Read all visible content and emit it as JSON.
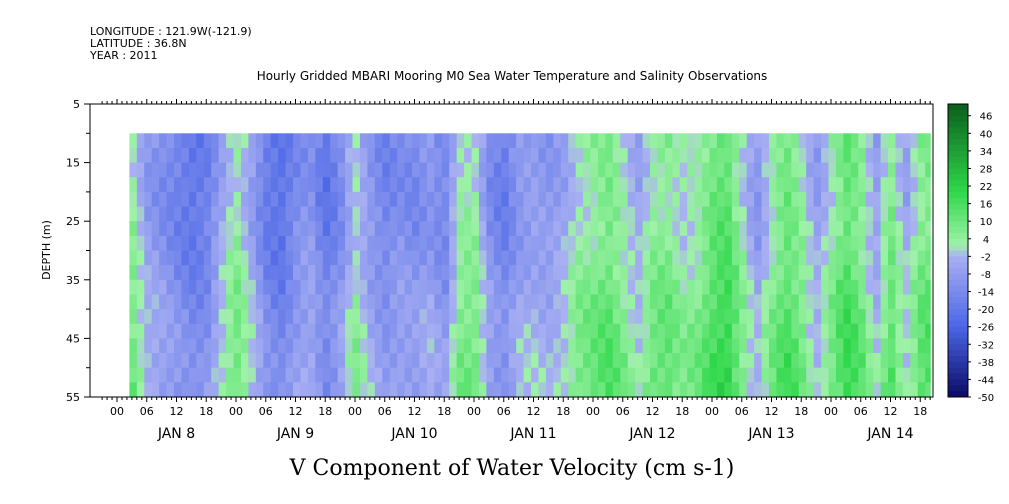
{
  "header": {
    "longitude": "LONGITUDE : 121.9W(-121.9)",
    "latitude": "LATITUDE : 36.8N",
    "year": "YEAR : 2011"
  },
  "chart_data": {
    "type": "heatmap",
    "title": "Hourly Gridded MBARI Mooring M0 Sea Water Temperature and Salinity Observations",
    "variable_label": "V Component of Water Velocity (cm s-1)",
    "ylabel": "DEPTH (m)",
    "y_ticks": [
      "5",
      "15",
      "25",
      "35",
      "45",
      "55"
    ],
    "ylim": [
      55,
      5
    ],
    "y_inverted": true,
    "data_depth_range": [
      10,
      55
    ],
    "x_tick_labels": [
      "00",
      "06",
      "12",
      "18",
      "00",
      "06",
      "12",
      "18",
      "00",
      "06",
      "12",
      "18",
      "00",
      "06",
      "12",
      "18",
      "00",
      "06",
      "12",
      "18",
      "00",
      "06",
      "12",
      "18",
      "00",
      "06",
      "12",
      "18"
    ],
    "x_day_labels": [
      "JAN  8",
      "JAN  9",
      "JAN 10",
      "JAN 11",
      "JAN 12",
      "JAN 13",
      "JAN 14"
    ],
    "colorbar": {
      "ticks": [
        "46",
        "40",
        "34",
        "28",
        "22",
        "16",
        "10",
        "4",
        "-2",
        "-8",
        "-14",
        "-20",
        "-26",
        "-32",
        "-38",
        "-44",
        "-50"
      ],
      "range": [
        -50,
        50
      ],
      "colors": {
        "strong_positive": "#0b5e1e",
        "positive": "#2fd84a",
        "weak_positive": "#9ff2a8",
        "weak_negative": "#a9b0f2",
        "negative": "#4b66e6",
        "strong_negative": "#0a0a66"
      }
    },
    "time_series_mean_v": [
      {
        "x": "JAN 8 02:30",
        "v": 8
      },
      {
        "x": "JAN 8 06",
        "v": -6
      },
      {
        "x": "JAN 8 09",
        "v": -10
      },
      {
        "x": "JAN 8 12",
        "v": -14
      },
      {
        "x": "JAN 8 15",
        "v": -18
      },
      {
        "x": "JAN 8 18",
        "v": -16
      },
      {
        "x": "JAN 8 21",
        "v": -4
      },
      {
        "x": "JAN 9 00",
        "v": 6
      },
      {
        "x": "JAN 9 03",
        "v": -4
      },
      {
        "x": "JAN 9 06",
        "v": -16
      },
      {
        "x": "JAN 9 09",
        "v": -20
      },
      {
        "x": "JAN 9 12",
        "v": -12
      },
      {
        "x": "JAN 9 15",
        "v": -8
      },
      {
        "x": "JAN 9 18",
        "v": -18
      },
      {
        "x": "JAN 9 21",
        "v": -12
      },
      {
        "x": "JAN 10 00",
        "v": 2
      },
      {
        "x": "JAN 10 03",
        "v": -8
      },
      {
        "x": "JAN 10 06",
        "v": -14
      },
      {
        "x": "JAN 10 09",
        "v": -10
      },
      {
        "x": "JAN 10 12",
        "v": -12
      },
      {
        "x": "JAN 10 15",
        "v": -8
      },
      {
        "x": "JAN 10 18",
        "v": -14
      },
      {
        "x": "JAN 10 21",
        "v": 4
      },
      {
        "x": "JAN 11 00",
        "v": 6
      },
      {
        "x": "JAN 11 03",
        "v": -10
      },
      {
        "x": "JAN 11 06",
        "v": -16
      },
      {
        "x": "JAN 11 09",
        "v": -8
      },
      {
        "x": "JAN 11 12",
        "v": -6
      },
      {
        "x": "JAN 11 15",
        "v": -8
      },
      {
        "x": "JAN 11 18",
        "v": -4
      },
      {
        "x": "JAN 11 21",
        "v": 4
      },
      {
        "x": "JAN 12 00",
        "v": 6
      },
      {
        "x": "JAN 12 03",
        "v": 10
      },
      {
        "x": "JAN 12 06",
        "v": 4
      },
      {
        "x": "JAN 12 09",
        "v": -4
      },
      {
        "x": "JAN 12 12",
        "v": 6
      },
      {
        "x": "JAN 12 15",
        "v": 8
      },
      {
        "x": "JAN 12 18",
        "v": 2
      },
      {
        "x": "JAN 12 21",
        "v": 4
      },
      {
        "x": "JAN 13 00",
        "v": 12
      },
      {
        "x": "JAN 13 03",
        "v": 16
      },
      {
        "x": "JAN 13 06",
        "v": 4
      },
      {
        "x": "JAN 13 09",
        "v": -8
      },
      {
        "x": "JAN 13 12",
        "v": 4
      },
      {
        "x": "JAN 13 15",
        "v": 12
      },
      {
        "x": "JAN 13 18",
        "v": 6
      },
      {
        "x": "JAN 13 21",
        "v": -6
      },
      {
        "x": "JAN 14 00",
        "v": 4
      },
      {
        "x": "JAN 14 03",
        "v": 14
      },
      {
        "x": "JAN 14 06",
        "v": 8
      },
      {
        "x": "JAN 14 09",
        "v": -6
      },
      {
        "x": "JAN 14 12",
        "v": 10
      },
      {
        "x": "JAN 14 15",
        "v": -4
      },
      {
        "x": "JAN 14 18",
        "v": 8
      },
      {
        "x": "JAN 14 20",
        "v": 10
      }
    ],
    "depth_profile_anomaly": [
      {
        "depth": 10,
        "dv": -2
      },
      {
        "depth": 15,
        "dv": -3
      },
      {
        "depth": 20,
        "dv": -3
      },
      {
        "depth": 25,
        "dv": -2
      },
      {
        "depth": 30,
        "dv": -1
      },
      {
        "depth": 35,
        "dv": 1
      },
      {
        "depth": 40,
        "dv": 3
      },
      {
        "depth": 45,
        "dv": 4
      },
      {
        "depth": 50,
        "dv": 5
      },
      {
        "depth": 55,
        "dv": 5
      }
    ]
  }
}
